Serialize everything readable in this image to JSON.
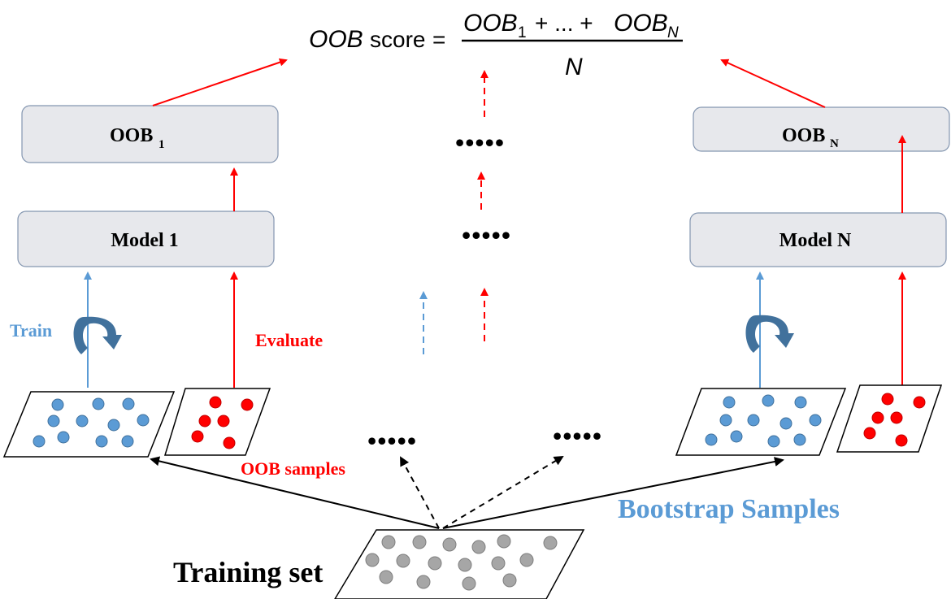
{
  "formula": {
    "lhs_var": "OOB",
    "lhs_word": "score",
    "equals": "=",
    "numerator_a": "OOB",
    "numerator_a_sub": "1",
    "numerator_mid": "+ ... +",
    "numerator_b": "OOB",
    "numerator_b_sub": "N",
    "denominator": "N"
  },
  "left": {
    "oob_box": {
      "label": "OOB",
      "sub": "1"
    },
    "model_box": {
      "label": "Model 1"
    },
    "train_label": "Train",
    "evaluate_label": "Evaluate"
  },
  "right": {
    "oob_box": {
      "label": "OOB",
      "sub": "N"
    },
    "model_box": {
      "label": "Model N"
    }
  },
  "ellipses": [
    "•••••",
    "•••••",
    "•••••",
    "•••••"
  ],
  "labels": {
    "oob_samples": "OOB samples",
    "bootstrap_samples": "Bootstrap Samples",
    "training_set": "Training set"
  },
  "colors": {
    "red": "#ff0000",
    "blue": "#5b9bd5",
    "box_fill": "#e7e8ec",
    "box_stroke": "#8496b0",
    "gray_dot": "#a6a6a6",
    "black": "#000000"
  }
}
